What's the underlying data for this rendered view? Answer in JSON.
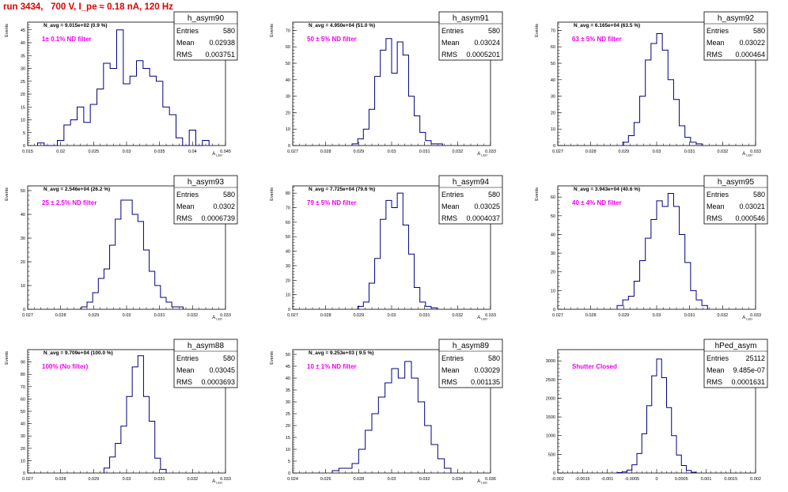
{
  "header": {
    "title": "run 3434,   700 V, I_pe ≈ 0.18 nA, 120 Hz"
  },
  "colors": {
    "hist": "#000080",
    "filter_label": "#ee00ee",
    "title": "#e00000",
    "axis": "#000000"
  },
  "chart_data": [
    {
      "type": "histogram",
      "name": "h_asym90",
      "stats": {
        "Entries": "580",
        "Mean": "0.02938",
        "RMS": "0.003751"
      },
      "n_avg_label": "N_avg = 9.015e+02 (0.9 %)",
      "filter_label": "1± 0.1% ND filter",
      "xlabel": "A_LED",
      "ylabel": "Events",
      "xlim": [
        0.015,
        0.045
      ],
      "ylim": [
        0,
        48
      ],
      "xticks": [
        "0.015",
        "0.02",
        "0.025",
        "0.03",
        "0.035",
        "0.04",
        "0.045"
      ],
      "yticks": [
        "0",
        "5",
        "10",
        "15",
        "20",
        "25",
        "30",
        "35",
        "40",
        "45"
      ],
      "bin_edges": [
        0.0165,
        0.0175,
        0.0185,
        0.0195,
        0.0205,
        0.0215,
        0.0225,
        0.0235,
        0.0245,
        0.0255,
        0.0265,
        0.0275,
        0.0285,
        0.0295,
        0.0305,
        0.0315,
        0.0325,
        0.0335,
        0.0345,
        0.0355,
        0.0365,
        0.0375,
        0.0385,
        0.0395,
        0.0405,
        0.0415,
        0.0425
      ],
      "values": [
        1,
        0,
        0,
        2,
        8,
        10,
        15,
        9,
        16,
        22,
        32,
        30,
        45,
        24,
        27,
        33,
        30,
        27,
        25,
        15,
        12,
        3,
        0,
        6,
        0,
        2
      ]
    },
    {
      "type": "histogram",
      "name": "h_asym91",
      "stats": {
        "Entries": "580",
        "Mean": "0.03024",
        "RMS": "0.0005201"
      },
      "n_avg_label": "N_avg = 4.950e+04 (51.0 %)",
      "filter_label": "50 ± 5% ND filter",
      "xlabel": "A_LED",
      "ylabel": "Events",
      "xlim": [
        0.0265,
        0.0335
      ],
      "ylim": [
        0,
        75
      ],
      "xticks": [
        "0.027",
        "0.028",
        "0.029",
        "0.03",
        "0.031",
        "0.032",
        "0.033"
      ],
      "yticks": [
        "0",
        "10",
        "20",
        "30",
        "40",
        "50",
        "60",
        "70"
      ],
      "bin_edges": [
        0.0286,
        0.0288,
        0.029,
        0.0292,
        0.0294,
        0.0296,
        0.0298,
        0.03,
        0.0302,
        0.0304,
        0.0306,
        0.0308,
        0.031,
        0.0312,
        0.0314,
        0.0316,
        0.0318
      ],
      "values": [
        1,
        4,
        10,
        22,
        42,
        58,
        65,
        44,
        63,
        55,
        30,
        18,
        8,
        3,
        1,
        1
      ]
    },
    {
      "type": "histogram",
      "name": "h_asym92",
      "stats": {
        "Entries": "580",
        "Mean": "0.03022",
        "RMS": "0.000464"
      },
      "n_avg_label": "N_avg = 6.165e+04 (63.5 %)",
      "filter_label": "63 ± 5% ND filter",
      "xlabel": "A_LED",
      "ylabel": "Events",
      "xlim": [
        0.0265,
        0.0335
      ],
      "ylim": [
        0,
        75
      ],
      "xticks": [
        "0.027",
        "0.028",
        "0.029",
        "0.03",
        "0.031",
        "0.032",
        "0.033"
      ],
      "yticks": [
        "0",
        "10",
        "20",
        "30",
        "40",
        "50",
        "60",
        "70"
      ],
      "bin_edges": [
        0.0288,
        0.029,
        0.0292,
        0.0294,
        0.0296,
        0.0298,
        0.03,
        0.0302,
        0.0304,
        0.0306,
        0.0308,
        0.031,
        0.0312,
        0.0314,
        0.0316
      ],
      "values": [
        2,
        6,
        14,
        30,
        52,
        62,
        68,
        58,
        40,
        28,
        12,
        5,
        2,
        1
      ]
    },
    {
      "type": "histogram",
      "name": "h_asym93",
      "stats": {
        "Entries": "580",
        "Mean": "0.0302",
        "RMS": "0.0006739"
      },
      "n_avg_label": "N_avg = 2.546e+04 (26.2 %)",
      "filter_label": "25 ± 2.5% ND filter",
      "xlabel": "A_LED",
      "ylabel": "Events",
      "xlim": [
        0.0265,
        0.0335
      ],
      "ylim": [
        0,
        52
      ],
      "xticks": [
        "0.027",
        "0.028",
        "0.029",
        "0.03",
        "0.031",
        "0.032",
        "0.033"
      ],
      "yticks": [
        "0",
        "10",
        "20",
        "30",
        "40",
        "50"
      ],
      "bin_edges": [
        0.0284,
        0.0286,
        0.0288,
        0.029,
        0.0292,
        0.0294,
        0.0296,
        0.0298,
        0.03,
        0.0302,
        0.0304,
        0.0306,
        0.0308,
        0.031,
        0.0312,
        0.0314,
        0.0316,
        0.0318,
        0.032
      ],
      "values": [
        1,
        3,
        7,
        13,
        17,
        27,
        38,
        46,
        46,
        40,
        37,
        25,
        16,
        10,
        5,
        3,
        1,
        1
      ]
    },
    {
      "type": "histogram",
      "name": "h_asym94",
      "stats": {
        "Entries": "580",
        "Mean": "0.03025",
        "RMS": "0.0004037"
      },
      "n_avg_label": "N_avg = 7.725e+04 (79.6 %)",
      "filter_label": "79 ± 5% ND filter",
      "xlabel": "A_LED",
      "ylabel": "Events",
      "xlim": [
        0.0265,
        0.0335
      ],
      "ylim": [
        0,
        85
      ],
      "xticks": [
        "0.027",
        "0.028",
        "0.029",
        "0.03",
        "0.031",
        "0.032",
        "0.033"
      ],
      "yticks": [
        "0",
        "10",
        "20",
        "30",
        "40",
        "50",
        "60",
        "70",
        "80"
      ],
      "bin_edges": [
        0.0288,
        0.029,
        0.0292,
        0.0294,
        0.0296,
        0.0298,
        0.03,
        0.0302,
        0.0304,
        0.0306,
        0.0308,
        0.031,
        0.0312,
        0.0314,
        0.0316
      ],
      "values": [
        2,
        5,
        18,
        35,
        62,
        75,
        70,
        80,
        58,
        38,
        15,
        5,
        2,
        1
      ]
    },
    {
      "type": "histogram",
      "name": "h_asym95",
      "stats": {
        "Entries": "580",
        "Mean": "0.03021",
        "RMS": "0.000546"
      },
      "n_avg_label": "N_avg = 3.943e+04 (40.6 %)",
      "filter_label": "40 ± 4% ND filter",
      "xlabel": "A_LED",
      "ylabel": "Events",
      "xlim": [
        0.0265,
        0.0335
      ],
      "ylim": [
        0,
        66
      ],
      "xticks": [
        "0.027",
        "0.028",
        "0.029",
        "0.03",
        "0.031",
        "0.032",
        "0.033"
      ],
      "yticks": [
        "0",
        "10",
        "20",
        "30",
        "40",
        "50",
        "60"
      ],
      "bin_edges": [
        0.0286,
        0.0288,
        0.029,
        0.0292,
        0.0294,
        0.0296,
        0.0298,
        0.03,
        0.0302,
        0.0304,
        0.0306,
        0.0308,
        0.031,
        0.0312,
        0.0314,
        0.0316,
        0.0318
      ],
      "values": [
        2,
        5,
        7,
        15,
        26,
        38,
        48,
        58,
        55,
        62,
        55,
        40,
        25,
        10,
        5,
        2
      ]
    },
    {
      "type": "histogram",
      "name": "h_asym88",
      "stats": {
        "Entries": "580",
        "Mean": "0.03045",
        "RMS": "0.0003693"
      },
      "n_avg_label": "N_avg = 9.709e+04 (100.0 %)",
      "filter_label": "100% (No filter)",
      "xlabel": "A_LED",
      "ylabel": "Events",
      "xlim": [
        0.0265,
        0.0335
      ],
      "ylim": [
        0,
        100
      ],
      "xticks": [
        "0.027",
        "0.028",
        "0.029",
        "0.03",
        "0.031",
        "0.032",
        "0.033"
      ],
      "yticks": [
        "0",
        "10",
        "20",
        "30",
        "40",
        "50",
        "60",
        "70",
        "80",
        "90"
      ],
      "bin_edges": [
        0.0292,
        0.0294,
        0.0296,
        0.0298,
        0.03,
        0.0302,
        0.0304,
        0.0306,
        0.0308,
        0.031,
        0.0312,
        0.0314
      ],
      "values": [
        4,
        13,
        24,
        38,
        62,
        86,
        95,
        62,
        42,
        12,
        3
      ]
    },
    {
      "type": "histogram",
      "name": "h_asym89",
      "stats": {
        "Entries": "580",
        "Mean": "0.03029",
        "RMS": "0.001135"
      },
      "n_avg_label": "N_avg = 9.253e+03 ( 9.5 %)",
      "filter_label": "10 ± 1% ND filter",
      "xlabel": "A_LED",
      "ylabel": "Events",
      "xlim": [
        0.024,
        0.036
      ],
      "ylim": [
        0,
        52
      ],
      "xticks": [
        "0.024",
        "0.026",
        "0.028",
        "0.03",
        "0.032",
        "0.034",
        "0.036"
      ],
      "yticks": [
        "0",
        "5",
        "10",
        "15",
        "20",
        "25",
        "30",
        "35",
        "40",
        "45",
        "50"
      ],
      "bin_edges": [
        0.0264,
        0.0268,
        0.0272,
        0.0276,
        0.028,
        0.0284,
        0.0288,
        0.0292,
        0.0296,
        0.03,
        0.0304,
        0.0308,
        0.0312,
        0.0316,
        0.032,
        0.0324,
        0.0328,
        0.0332,
        0.0336
      ],
      "values": [
        1,
        2,
        2,
        4,
        10,
        18,
        25,
        32,
        38,
        44,
        40,
        47,
        40,
        30,
        20,
        12,
        6,
        2
      ]
    },
    {
      "type": "histogram",
      "name": "hPed_asym",
      "stats": {
        "Entries": "25112",
        "Mean": "9.485e-07",
        "RMS": "0.0001631"
      },
      "n_avg_label": "",
      "filter_label": "Shutter Closed",
      "xlabel": "",
      "ylabel": "",
      "xlim": [
        -0.002,
        0.002
      ],
      "ylim": [
        0,
        3300
      ],
      "xticks": [
        "-0.002",
        "-0.0015",
        "-0.001",
        "-0.0005",
        "0",
        "0.0005",
        "0.001",
        "0.0015",
        "0.002"
      ],
      "yticks": [
        "0",
        "500",
        "1000",
        "1500",
        "2000",
        "2500",
        "3000"
      ],
      "bin_edges": [
        -0.0008,
        -0.0007,
        -0.0006,
        -0.0005,
        -0.0004,
        -0.0003,
        -0.0002,
        -0.0001,
        0,
        0.0001,
        0.0002,
        0.0003,
        0.0004,
        0.0005,
        0.0006,
        0.0007,
        0.0008
      ],
      "values": [
        10,
        30,
        80,
        220,
        520,
        1050,
        1800,
        2600,
        3050,
        2550,
        1750,
        1000,
        480,
        200,
        70,
        20
      ]
    }
  ]
}
